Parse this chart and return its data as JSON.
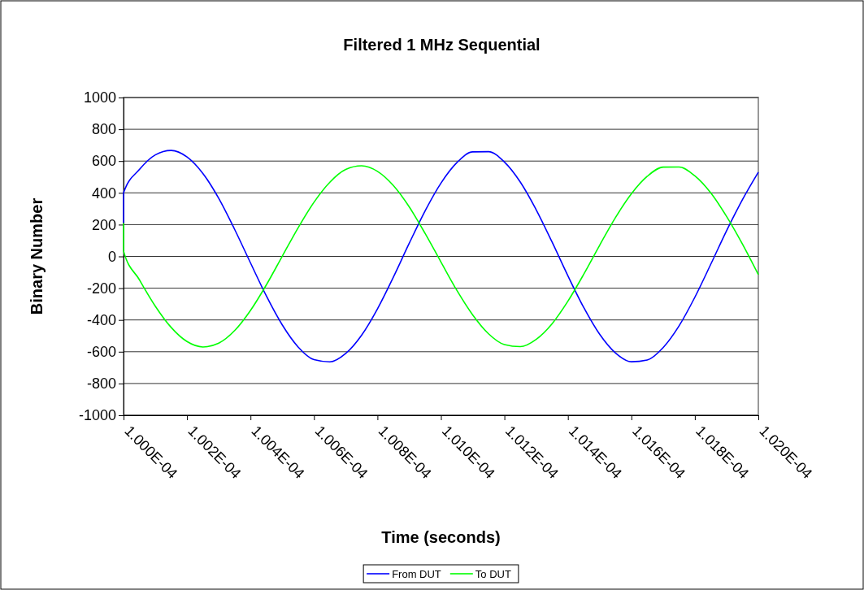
{
  "chart_data": {
    "type": "line",
    "title": "Filtered 1 MHz Sequential",
    "xlabel": "Time (seconds)",
    "ylabel": "Binary Number",
    "x": [
      0.0001,
      0.0001,
      0.00010005,
      0.0001001,
      0.00010015,
      0.0001002,
      0.00010025,
      0.0001003,
      0.00010035,
      0.0001004,
      0.00010045,
      0.0001005,
      0.00010055,
      0.0001006,
      0.00010065,
      0.0001007,
      0.00010075,
      0.0001008,
      0.00010085,
      0.0001009,
      0.00010095,
      0.000101,
      0.00010105,
      0.0001011,
      0.00010115,
      0.0001012,
      0.00010125,
      0.0001013,
      0.00010135,
      0.0001014,
      0.00010145,
      0.0001015,
      0.00010155,
      0.0001016,
      0.00010165,
      0.0001017,
      0.00010175,
      0.0001018,
      0.00010185,
      0.0001019,
      0.00010195,
      0.000102
    ],
    "series": [
      {
        "name": "From DUT",
        "color": "#0000ff",
        "values": [
          210,
          400,
          547,
          639,
          667,
          626,
          522,
          365,
          170,
          -41,
          -249,
          -431,
          -570,
          -650,
          -664,
          -611,
          -496,
          -330,
          -131,
          82,
          286,
          461,
          590,
          658,
          659,
          594,
          468,
          294,
          91,
          -122,
          -322,
          -490,
          -608,
          -663,
          -652,
          -574,
          -438,
          -257,
          -50,
          162,
          357,
          530
        ]
      },
      {
        "name": "To DUT",
        "color": "#00ff00",
        "values": [
          210,
          34,
          -147,
          -313,
          -447,
          -536,
          -570,
          -546,
          -467,
          -340,
          -179,
          1,
          180,
          341,
          467,
          547,
          570,
          535,
          446,
          312,
          145,
          -35,
          -213,
          -368,
          -487,
          -555,
          -568,
          -522,
          -424,
          -282,
          -112,
          70,
          245,
          394,
          504,
          562,
          563,
          507,
          400,
          251,
          77,
          -115
        ]
      }
    ],
    "xlim": [
      0.0001,
      0.000102
    ],
    "xticks": [
      {
        "value": 0.0001,
        "label": "1.000E-04"
      },
      {
        "value": 0.0001002,
        "label": "1.002E-04"
      },
      {
        "value": 0.0001004,
        "label": "1.004E-04"
      },
      {
        "value": 0.0001006,
        "label": "1.006E-04"
      },
      {
        "value": 0.0001008,
        "label": "1.008E-04"
      },
      {
        "value": 0.000101,
        "label": "1.010E-04"
      },
      {
        "value": 0.0001012,
        "label": "1.012E-04"
      },
      {
        "value": 0.0001014,
        "label": "1.014E-04"
      },
      {
        "value": 0.0001016,
        "label": "1.016E-04"
      },
      {
        "value": 0.0001018,
        "label": "1.018E-04"
      },
      {
        "value": 0.000102,
        "label": "1.020E-04"
      }
    ],
    "ylim": [
      -1000,
      1000
    ],
    "yticks": [
      -1000,
      -800,
      -600,
      -400,
      -200,
      0,
      200,
      400,
      600,
      800,
      1000
    ],
    "grid": "y",
    "legend": "bottom",
    "marker": "none",
    "line_style": "solid"
  }
}
